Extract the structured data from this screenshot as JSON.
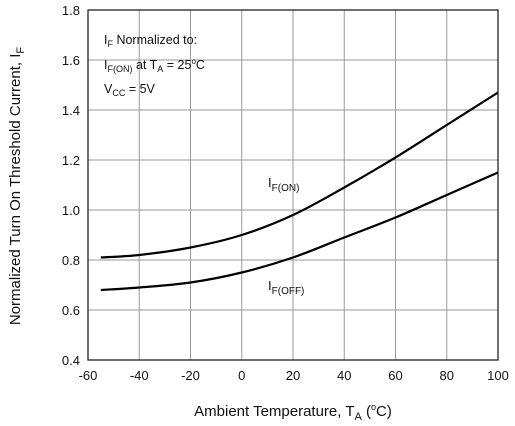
{
  "chart_data": {
    "type": "line",
    "title": "",
    "xlabel": {
      "main": "Ambient Temperature, T",
      "sub": "A",
      "unit_open": " (",
      "unit_deg": "o",
      "unit_c": "C)"
    },
    "ylabel": {
      "main": "Normalized Turn On Threshold Current, I",
      "sub": "F"
    },
    "xlim": [
      -60,
      100
    ],
    "ylim": [
      0.4,
      1.8
    ],
    "x_ticks": [
      "-60",
      "-40",
      "-20",
      "0",
      "20",
      "40",
      "60",
      "80",
      "100"
    ],
    "y_ticks": [
      "0.4",
      "0.6",
      "0.8",
      "1.0",
      "1.2",
      "1.4",
      "1.6",
      "1.8"
    ],
    "grid": true,
    "series": [
      {
        "name": "I_F(ON)",
        "label_main": "I",
        "label_sub": "F(ON)",
        "x": [
          -55,
          -40,
          -20,
          0,
          20,
          40,
          60,
          80,
          100
        ],
        "y": [
          0.81,
          0.82,
          0.85,
          0.9,
          0.98,
          1.09,
          1.21,
          1.34,
          1.47
        ]
      },
      {
        "name": "I_F(OFF)",
        "label_main": "I",
        "label_sub": "F(OFF)",
        "x": [
          -55,
          -40,
          -20,
          0,
          20,
          40,
          60,
          80,
          100
        ],
        "y": [
          0.68,
          0.69,
          0.71,
          0.75,
          0.81,
          0.89,
          0.97,
          1.06,
          1.15
        ]
      }
    ],
    "annotation": {
      "line1_main": "I",
      "line1_sub": "F",
      "line1_rest": " Normalized to:",
      "line2_main": "I",
      "line2_sub": "F(ON)",
      "line2_mid": " at T",
      "line2_sub2": "A",
      "line2_rest": " = 25",
      "line2_deg": "o",
      "line2_end": "C",
      "line3_main": "V",
      "line3_sub": "CC",
      "line3_rest": " = 5V"
    }
  }
}
